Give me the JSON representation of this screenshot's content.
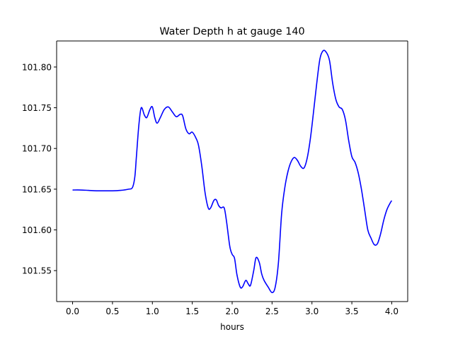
{
  "chart_data": {
    "type": "line",
    "title": "Water Depth h at gauge 140",
    "xlabel": "hours",
    "ylabel": "",
    "xlim": [
      -0.2,
      4.2
    ],
    "ylim": [
      101.512,
      101.832
    ],
    "xticks": [
      0.0,
      0.5,
      1.0,
      1.5,
      2.0,
      2.5,
      3.0,
      3.5,
      4.0
    ],
    "xtick_labels": [
      "0.0",
      "0.5",
      "1.0",
      "1.5",
      "2.0",
      "2.5",
      "3.0",
      "3.5",
      "4.0"
    ],
    "yticks": [
      101.55,
      101.6,
      101.65,
      101.7,
      101.75,
      101.8
    ],
    "ytick_labels": [
      "101.55",
      "101.60",
      "101.65",
      "101.70",
      "101.75",
      "101.80"
    ],
    "grid": false,
    "legend": "none",
    "series": [
      {
        "name": "",
        "color": "#0000ff",
        "x": [
          0.0,
          0.1,
          0.2,
          0.3,
          0.4,
          0.5,
          0.6,
          0.7,
          0.75,
          0.78,
          0.8,
          0.83,
          0.86,
          0.9,
          0.93,
          0.97,
          1.0,
          1.03,
          1.06,
          1.1,
          1.15,
          1.2,
          1.25,
          1.3,
          1.35,
          1.38,
          1.42,
          1.46,
          1.5,
          1.55,
          1.58,
          1.62,
          1.66,
          1.7,
          1.73,
          1.77,
          1.8,
          1.83,
          1.86,
          1.9,
          1.93,
          1.97,
          2.0,
          2.03,
          2.06,
          2.1,
          2.13,
          2.17,
          2.2,
          2.23,
          2.27,
          2.3,
          2.34,
          2.37,
          2.4,
          2.45,
          2.5,
          2.54,
          2.58,
          2.62,
          2.66,
          2.7,
          2.74,
          2.78,
          2.82,
          2.86,
          2.9,
          2.94,
          2.98,
          3.02,
          3.06,
          3.1,
          3.14,
          3.18,
          3.22,
          3.26,
          3.3,
          3.34,
          3.38,
          3.42,
          3.46,
          3.5,
          3.54,
          3.58,
          3.62,
          3.66,
          3.7,
          3.74,
          3.78,
          3.82,
          3.86,
          3.9,
          3.94,
          3.98,
          4.0
        ],
        "y": [
          101.649,
          101.649,
          101.6485,
          101.648,
          101.648,
          101.648,
          101.6485,
          101.65,
          101.652,
          101.665,
          101.69,
          101.728,
          101.75,
          101.741,
          101.738,
          101.748,
          101.751,
          101.738,
          101.731,
          101.738,
          101.748,
          101.751,
          101.745,
          101.739,
          101.742,
          101.74,
          101.724,
          101.718,
          101.72,
          101.712,
          101.703,
          101.678,
          101.646,
          101.627,
          101.627,
          101.636,
          101.637,
          101.63,
          101.627,
          101.627,
          101.61,
          101.58,
          101.57,
          101.565,
          101.545,
          101.53,
          101.53,
          101.538,
          101.534,
          101.532,
          101.55,
          101.566,
          101.56,
          101.546,
          101.538,
          101.53,
          101.523,
          101.53,
          101.56,
          101.62,
          101.652,
          101.672,
          101.684,
          101.689,
          101.685,
          101.678,
          101.676,
          101.688,
          101.712,
          101.745,
          101.78,
          101.81,
          101.82,
          101.818,
          101.808,
          101.78,
          101.76,
          101.751,
          101.748,
          101.735,
          101.71,
          101.69,
          101.683,
          101.67,
          101.65,
          101.625,
          101.6,
          101.59,
          101.582,
          101.583,
          101.595,
          101.612,
          101.625,
          101.633,
          101.636
        ]
      }
    ]
  }
}
